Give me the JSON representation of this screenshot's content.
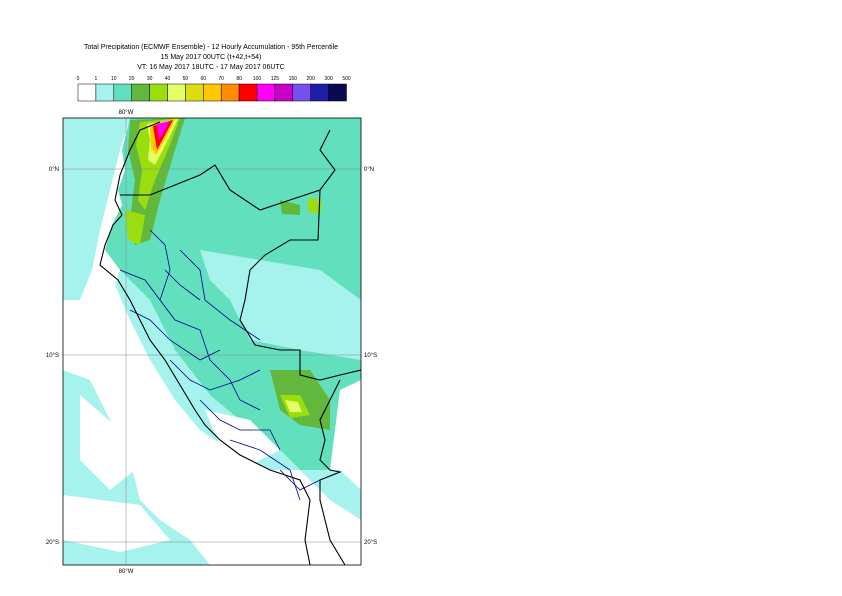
{
  "title": {
    "line1": "Total Precipitation (ECMWF Ensemble) - 12 Hourly Accumulation - 95th Percentile",
    "line2": "15 May 2017 00UTC (t+42,t+54)",
    "line3": "VT: 16 May 2017 18UTC - 17 May 2017 06UTC"
  },
  "legend": {
    "ticks": [
      "0",
      "1",
      "10",
      "20",
      "30",
      "40",
      "50",
      "60",
      "70",
      "80",
      "100",
      "125",
      "150",
      "200",
      "300",
      "500"
    ],
    "colors": [
      "#ffffff",
      "#a6f3ee",
      "#62e0bd",
      "#62b73d",
      "#9bde10",
      "#e4ff66",
      "#dcde0f",
      "#ffc800",
      "#ff8c00",
      "#ff0000",
      "#ff00ff",
      "#c800c8",
      "#7850f0",
      "#1e1ea8",
      "#0a0a50"
    ]
  },
  "map": {
    "lon_labels": {
      "top": "80°W",
      "bottom": "80°W"
    },
    "lat_labels": {
      "eq": "0°N",
      "s10": "10°S",
      "s20": "20°S"
    },
    "sea_color": "#ffffff",
    "country_border_color": "#000000",
    "admin_border_color": "#00008b"
  }
}
